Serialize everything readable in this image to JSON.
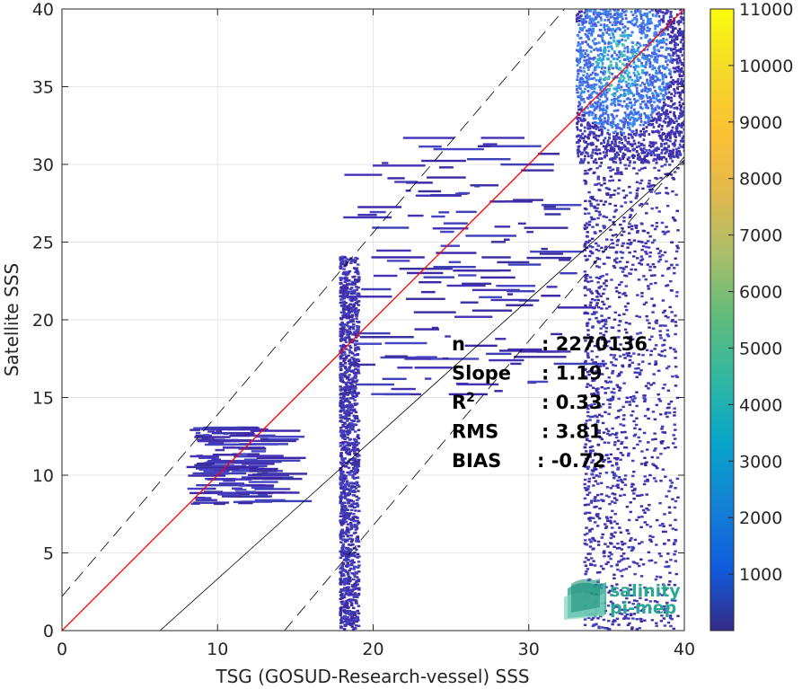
{
  "chart_data": {
    "type": "heatmap",
    "title": "",
    "xlabel": "TSG (GOSUD-Research-vessel) SSS",
    "ylabel": "Satellite SSS",
    "xlim": [
      0,
      40
    ],
    "ylim": [
      0,
      40
    ],
    "xticks": [
      0,
      10,
      20,
      30,
      40
    ],
    "yticks": [
      0,
      5,
      10,
      15,
      20,
      25,
      30,
      35,
      40
    ],
    "grid": true,
    "colorbar": {
      "min": 0,
      "max": 11000,
      "ticks": [
        1000,
        2000,
        3000,
        4000,
        5000,
        6000,
        7000,
        8000,
        9000,
        10000,
        11000
      ],
      "colormap": "parula"
    },
    "lines": [
      {
        "name": "fit",
        "color": "#ff0000",
        "points": [
          [
            0,
            0
          ],
          [
            40,
            40
          ]
        ]
      },
      {
        "name": "offset",
        "color": "#000000",
        "style": "solid",
        "points": [
          [
            6.3,
            0
          ],
          [
            40,
            30.3
          ]
        ]
      },
      {
        "name": "upper bound",
        "color": "#000000",
        "style": "dashed",
        "points": [
          [
            0,
            2.2
          ],
          [
            32.3,
            40
          ]
        ]
      },
      {
        "name": "lower bound",
        "color": "#000000",
        "style": "dashed",
        "points": [
          [
            14.3,
            0
          ],
          [
            40,
            30.5
          ]
        ]
      }
    ],
    "density_clusters": [
      {
        "x": [
          33,
          40
        ],
        "y": [
          30,
          40
        ],
        "level": "high",
        "peak": [
          35.8,
          36.4
        ]
      },
      {
        "x": [
          33.5,
          39.5
        ],
        "y": [
          0,
          30
        ],
        "level": "low"
      },
      {
        "x": [
          17.8,
          19
        ],
        "y": [
          0,
          24
        ],
        "level": "low"
      },
      {
        "x": [
          18,
          32
        ],
        "y": [
          15,
          32
        ],
        "level": "sparse"
      },
      {
        "x": [
          8,
          13
        ],
        "y": [
          8,
          13
        ],
        "level": "sparse"
      }
    ],
    "stats": [
      {
        "label": "n",
        "value": ": 2270136"
      },
      {
        "label": "Slope",
        "value": ": 1.19"
      },
      {
        "label": "R",
        "sup": "2",
        "value": ": 0.33"
      },
      {
        "label": "RMS",
        "value": ": 3.81"
      },
      {
        "label": "BIAS",
        "value": ": -0.72"
      }
    ]
  },
  "logo": {
    "line1": "salinity",
    "line2": "pi-mep",
    "color": "#2aa892"
  }
}
